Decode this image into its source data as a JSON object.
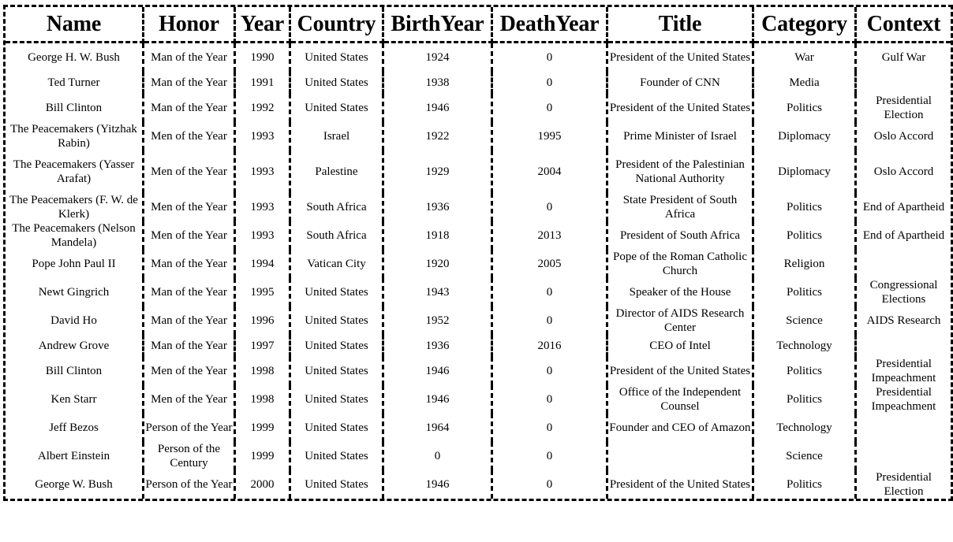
{
  "table": {
    "columns": [
      "Name",
      "Honor",
      "Year",
      "Country",
      "BirthYear",
      "DeathYear",
      "Title",
      "Category",
      "Context"
    ],
    "rows": [
      [
        "George H. W. Bush",
        "Man of the Year",
        "1990",
        "United States",
        "1924",
        "0",
        "President of the United States",
        "War",
        "Gulf War"
      ],
      [
        "Ted Turner",
        "Man of the Year",
        "1991",
        "United States",
        "1938",
        "0",
        "Founder of CNN",
        "Media",
        ""
      ],
      [
        "Bill Clinton",
        "Man of the Year",
        "1992",
        "United States",
        "1946",
        "0",
        "President of the United States",
        "Politics",
        "Presidential Election"
      ],
      [
        "The Peacemakers (Yitzhak Rabin)",
        "Men of the Year",
        "1993",
        "Israel",
        "1922",
        "1995",
        "Prime Minister of Israel",
        "Diplomacy",
        "Oslo Accord"
      ],
      [
        "The Peacemakers (Yasser Arafat)",
        "Men of the Year",
        "1993",
        "Palestine",
        "1929",
        "2004",
        "President of the Palestinian National Authority",
        "Diplomacy",
        "Oslo Accord"
      ],
      [
        "The Peacemakers (F. W. de Klerk)",
        "Men of the Year",
        "1993",
        "South Africa",
        "1936",
        "0",
        "State President of South Africa",
        "Politics",
        "End of Apartheid"
      ],
      [
        "The Peacemakers (Nelson Mandela)",
        "Men of the Year",
        "1993",
        "South Africa",
        "1918",
        "2013",
        "President of South Africa",
        "Politics",
        "End of Apartheid"
      ],
      [
        "Pope John Paul II",
        "Man of the Year",
        "1994",
        "Vatican City",
        "1920",
        "2005",
        "Pope of the Roman Catholic Church",
        "Religion",
        ""
      ],
      [
        "Newt Gingrich",
        "Man of the Year",
        "1995",
        "United States",
        "1943",
        "0",
        "Speaker of the House",
        "Politics",
        "Congressional Elections"
      ],
      [
        "David Ho",
        "Man of the Year",
        "1996",
        "United States",
        "1952",
        "0",
        "Director of AIDS Research Center",
        "Science",
        "AIDS Research"
      ],
      [
        "Andrew Grove",
        "Man of the Year",
        "1997",
        "United States",
        "1936",
        "2016",
        "CEO of Intel",
        "Technology",
        ""
      ],
      [
        "Bill Clinton",
        "Men of the Year",
        "1998",
        "United States",
        "1946",
        "0",
        "President of the United States",
        "Politics",
        "Presidential Impeachment"
      ],
      [
        "Ken Starr",
        "Men of the Year",
        "1998",
        "United States",
        "1946",
        "0",
        "Office of the Independent Counsel",
        "Politics",
        "Presidential Impeachment"
      ],
      [
        "Jeff Bezos",
        "Person of the Year",
        "1999",
        "United States",
        "1964",
        "0",
        "Founder and CEO of Amazon",
        "Technology",
        ""
      ],
      [
        "Albert Einstein",
        "Person of the Century",
        "1999",
        "United States",
        "0",
        "0",
        "",
        "Science",
        ""
      ],
      [
        "George W. Bush",
        "Person of the Year",
        "2000",
        "United States",
        "1946",
        "0",
        "President of the United States",
        "Politics",
        "Presidential Election"
      ]
    ]
  }
}
